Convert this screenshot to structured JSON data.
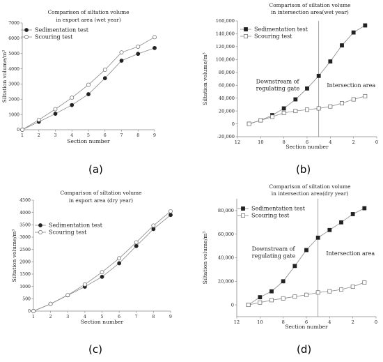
{
  "chart_data": [
    {
      "panel": "(a)",
      "type": "line",
      "title": [
        "Comparison of siltation volume",
        "in export area (wet year)"
      ],
      "xlabel": "Section number",
      "ylabel": "Siltation volume/m³",
      "xlim": [
        1,
        9
      ],
      "ylim": [
        0,
        7000
      ],
      "xticks": [
        1,
        2,
        3,
        4,
        5,
        6,
        7,
        8,
        9
      ],
      "yticks": [
        0,
        1000,
        2000,
        3000,
        4000,
        5000,
        6000,
        7000
      ],
      "xtick_labels": [
        "1",
        "2",
        "3",
        "4",
        "5",
        "6",
        "7",
        "8",
        "9"
      ],
      "ytick_labels": [
        "0",
        "1000",
        "2000",
        "3000",
        "4000",
        "5000",
        "6000",
        "7000"
      ],
      "legend": "top-center",
      "series": [
        {
          "name": "Sedimentation test",
          "marker": "filled-circle",
          "x": [
            1,
            2,
            3,
            4,
            5,
            6,
            7,
            8,
            9
          ],
          "values": [
            0,
            520,
            1050,
            1620,
            2330,
            3380,
            4530,
            4980,
            5360
          ]
        },
        {
          "name": "Scouring test",
          "marker": "open-circle",
          "x": [
            1,
            2,
            3,
            4,
            5,
            6,
            7,
            8,
            9
          ],
          "values": [
            0,
            650,
            1350,
            2100,
            2950,
            3930,
            5070,
            5450,
            6070
          ]
        }
      ]
    },
    {
      "panel": "(b)",
      "type": "line",
      "title": [
        "Comparison of siltation volume",
        "in intersection area(wet year)"
      ],
      "xlabel": "Section number",
      "ylabel": "Siltation volume/m³",
      "xlim": [
        12,
        0
      ],
      "ylim": [
        -20000,
        160000
      ],
      "xticks": [
        12,
        10,
        8,
        6,
        4,
        2,
        0
      ],
      "yticks": [
        -20000,
        0,
        20000,
        40000,
        60000,
        80000,
        100000,
        120000,
        140000,
        160000
      ],
      "xtick_labels": [
        "12",
        "10",
        "8",
        "6",
        "4",
        "2",
        "0"
      ],
      "ytick_labels": [
        "-20,000",
        "0",
        "20,000",
        "40,000",
        "60,000",
        "80,000",
        "100,000",
        "120,000",
        "140,000",
        "160,000"
      ],
      "vline": 5,
      "annotations": [
        {
          "lines": [
            "Downstream of",
            "regulating gate"
          ],
          "x": 10.4,
          "y": 63000
        },
        {
          "lines": [
            "Intersection area"
          ],
          "x": 4.3,
          "y": 57000
        }
      ],
      "legend": "top-left",
      "series": [
        {
          "name": "Sedimentation test",
          "marker": "filled-square",
          "x": [
            11,
            10,
            9,
            8,
            7,
            6,
            5,
            4,
            3,
            2,
            1
          ],
          "values": [
            0,
            5500,
            13500,
            24000,
            38000,
            55000,
            74500,
            97000,
            122000,
            142000,
            153000
          ]
        },
        {
          "name": "Scouring test",
          "marker": "open-square",
          "x": [
            11,
            10,
            9,
            8,
            7,
            6,
            5,
            4,
            3,
            2,
            1
          ],
          "values": [
            0,
            5500,
            11000,
            17000,
            20000,
            22000,
            24000,
            27000,
            32000,
            38000,
            43000
          ]
        }
      ]
    },
    {
      "panel": "(c)",
      "type": "line",
      "title": [
        "Comparison of siltation volume",
        "in export area (dry year)"
      ],
      "xlabel": "Section number",
      "ylabel": "Siltation volume/m³",
      "xlim": [
        1,
        9
      ],
      "ylim": [
        0,
        4500
      ],
      "xticks": [
        1,
        2,
        3,
        4,
        5,
        6,
        7,
        8,
        9
      ],
      "yticks": [
        0,
        500,
        1000,
        1500,
        2000,
        2500,
        3000,
        3500,
        4000,
        4500
      ],
      "xtick_labels": [
        "1",
        "2",
        "3",
        "4",
        "5",
        "6",
        "7",
        "8",
        "9"
      ],
      "ytick_labels": [
        "0",
        "500",
        "1000",
        "1500",
        "2000",
        "2500",
        "3000",
        "3500",
        "4000",
        "4500"
      ],
      "legend": "top-center",
      "series": [
        {
          "name": "Sedimentation test",
          "marker": "filled-circle",
          "x": [
            1,
            2,
            3,
            4,
            5,
            6,
            7,
            8,
            9
          ],
          "values": [
            0,
            290,
            640,
            990,
            1390,
            1940,
            2640,
            3330,
            3900
          ]
        },
        {
          "name": "Scouring test",
          "marker": "open-circle",
          "x": [
            1,
            2,
            3,
            4,
            5,
            6,
            7,
            8,
            9
          ],
          "values": [
            0,
            290,
            650,
            1080,
            1580,
            2140,
            2790,
            3470,
            4050
          ]
        }
      ]
    },
    {
      "panel": "(d)",
      "type": "line",
      "title": [
        "Comparison of siltation volume",
        "in intersection area(dry year)"
      ],
      "xlabel": "Section number",
      "ylabel": "Siltation volume/m³",
      "xlim": [
        12,
        0
      ],
      "ylim": [
        -10000,
        90000
      ],
      "xticks": [
        12,
        10,
        8,
        6,
        4,
        2,
        0
      ],
      "yticks": [
        0,
        20000,
        40000,
        60000,
        80000
      ],
      "xtick_labels": [
        "12",
        "10",
        "8",
        "6",
        "4",
        "2",
        "0"
      ],
      "ytick_labels": [
        "0",
        "20,000",
        "40,000",
        "60,000",
        "80,000"
      ],
      "vline": 5,
      "annotations": [
        {
          "lines": [
            "Downstream of",
            "regulating gate"
          ],
          "x": 10.7,
          "y": 46000
        },
        {
          "lines": [
            "Intersection area"
          ],
          "x": 4.3,
          "y": 42000
        }
      ],
      "legend": "top-left",
      "series": [
        {
          "name": "Sedimentation test",
          "marker": "filled-square",
          "x": [
            11,
            10,
            9,
            8,
            7,
            6,
            5,
            4,
            3,
            2,
            1
          ],
          "values": [
            0,
            6500,
            11500,
            20000,
            33000,
            46500,
            57000,
            63500,
            70000,
            77000,
            82000
          ]
        },
        {
          "name": "Scouring test",
          "marker": "open-square",
          "x": [
            11,
            10,
            9,
            8,
            7,
            6,
            5,
            4,
            3,
            2,
            1
          ],
          "values": [
            0,
            2000,
            4000,
            5500,
            7000,
            8500,
            10500,
            11500,
            13000,
            15500,
            19000
          ]
        }
      ]
    }
  ]
}
